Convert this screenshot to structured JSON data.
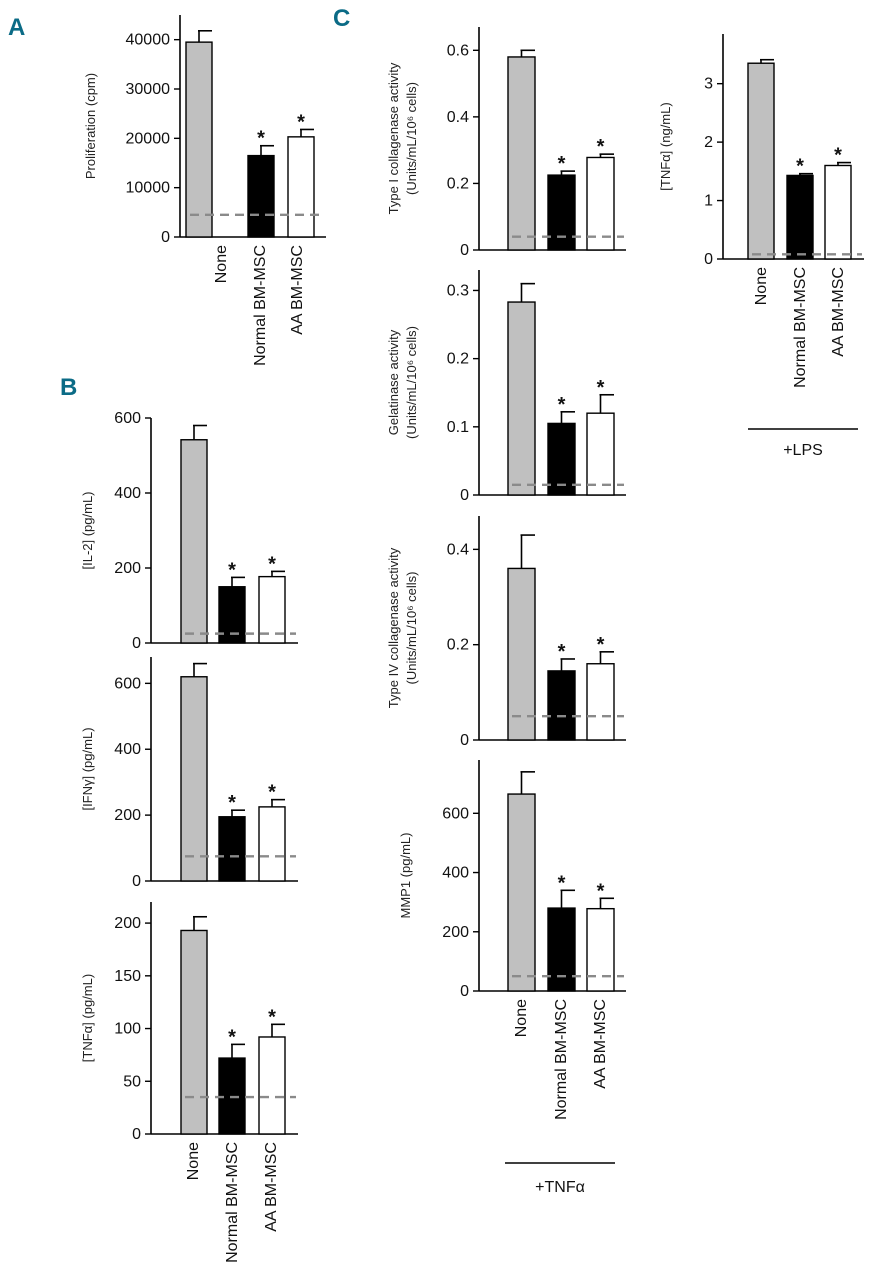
{
  "panels": {
    "A": "A",
    "B": "B",
    "C": "C"
  },
  "significance_marker": "*",
  "colors": {
    "None": "#c0c0c0",
    "Normal BM-MSC": "#000000",
    "AA BM-MSC": "#ffffff",
    "baseline": "#8a8a8a",
    "label": "#0b6b86"
  },
  "categories": [
    "None",
    "Normal BM-MSC",
    "AA BM-MSC"
  ],
  "groups": {
    "tnf": "+TNFα",
    "lps": "+LPS"
  },
  "chart_data": [
    {
      "id": "A",
      "type": "bar",
      "ylabel": "Proliferation (cpm)",
      "ylim": [
        0,
        45000
      ],
      "ticks": [
        0,
        10000,
        20000,
        30000,
        40000
      ],
      "tick_labels": [
        "0",
        "10000",
        "20000",
        "30000",
        "40000"
      ],
      "values": [
        39500,
        16500,
        20300
      ],
      "errors": [
        2300,
        2000,
        1500
      ],
      "baseline": 4500,
      "significant": [
        false,
        true,
        true
      ]
    },
    {
      "id": "B1",
      "type": "bar",
      "ylabel": "[IL-2] (pg/mL)",
      "ylim": [
        0,
        600
      ],
      "ticks": [
        0,
        200,
        400,
        600
      ],
      "tick_labels": [
        "0",
        "200",
        "400",
        "600"
      ],
      "values": [
        542,
        150,
        177
      ],
      "errors": [
        38,
        25,
        14
      ],
      "baseline": 25,
      "significant": [
        false,
        true,
        true
      ]
    },
    {
      "id": "B2",
      "type": "bar",
      "ylabel": "[IFNγ] (pg/mL)",
      "ylim": [
        0,
        680
      ],
      "ticks": [
        0,
        200,
        400,
        600
      ],
      "tick_labels": [
        "0",
        "200",
        "400",
        "600"
      ],
      "values": [
        620,
        195,
        225
      ],
      "errors": [
        40,
        20,
        22
      ],
      "baseline": 75,
      "significant": [
        false,
        true,
        true
      ]
    },
    {
      "id": "B3",
      "type": "bar",
      "ylabel": "[TNFα] (pg/mL)",
      "ylim": [
        0,
        220
      ],
      "ticks": [
        0,
        50,
        100,
        150,
        200
      ],
      "tick_labels": [
        "0",
        "50",
        "100",
        "150",
        "200"
      ],
      "values": [
        193,
        72,
        92
      ],
      "errors": [
        13,
        13,
        12
      ],
      "baseline": 35,
      "significant": [
        false,
        true,
        true
      ]
    },
    {
      "id": "C1",
      "type": "bar",
      "ylabel": "Type I collagenase activity",
      "ylabel2": "(Units/mL/10⁶ cells)",
      "ylim": [
        0,
        0.67
      ],
      "ticks": [
        0,
        0.2,
        0.4,
        0.6
      ],
      "tick_labels": [
        "0",
        "0.2",
        "0.4",
        "0.6"
      ],
      "values": [
        0.58,
        0.225,
        0.278
      ],
      "errors": [
        0.02,
        0.012,
        0.01
      ],
      "baseline": 0.04,
      "significant": [
        false,
        true,
        true
      ]
    },
    {
      "id": "C2",
      "type": "bar",
      "ylabel": "Gelatinase activity",
      "ylabel2": "(Units/mL/10⁶ cells)",
      "ylim": [
        0,
        0.33
      ],
      "ticks": [
        0,
        0.1,
        0.2,
        0.3
      ],
      "tick_labels": [
        "0",
        "0.1",
        "0.2",
        "0.3"
      ],
      "values": [
        0.283,
        0.105,
        0.12
      ],
      "errors": [
        0.027,
        0.017,
        0.027
      ],
      "baseline": 0.015,
      "significant": [
        false,
        true,
        true
      ]
    },
    {
      "id": "C3",
      "type": "bar",
      "ylabel": "Type IV collagenase activity",
      "ylabel2": "(Units/mL/10⁶ cells)",
      "ylim": [
        0,
        0.47
      ],
      "ticks": [
        0,
        0.2,
        0.4
      ],
      "tick_labels": [
        "0",
        "0.2",
        "0.4"
      ],
      "values": [
        0.36,
        0.145,
        0.16
      ],
      "errors": [
        0.07,
        0.025,
        0.025
      ],
      "baseline": 0.05,
      "significant": [
        false,
        true,
        true
      ]
    },
    {
      "id": "C4",
      "type": "bar",
      "ylabel": "MMP1 (pg/mL)",
      "ylim": [
        0,
        780
      ],
      "ticks": [
        0,
        200,
        400,
        600
      ],
      "tick_labels": [
        "0",
        "200",
        "400",
        "600"
      ],
      "values": [
        665,
        280,
        278
      ],
      "errors": [
        75,
        60,
        35
      ],
      "baseline": 50,
      "significant": [
        false,
        true,
        true
      ]
    },
    {
      "id": "C5",
      "type": "bar",
      "ylabel": "[TNFα] (ng/mL)",
      "ylim": [
        0,
        3.85
      ],
      "ticks": [
        0,
        1,
        2,
        3
      ],
      "tick_labels": [
        "0",
        "1",
        "2",
        "3"
      ],
      "values": [
        3.35,
        1.43,
        1.6
      ],
      "errors": [
        0.06,
        0.03,
        0.05
      ],
      "baseline": 0.08,
      "significant": [
        false,
        true,
        true
      ]
    }
  ]
}
